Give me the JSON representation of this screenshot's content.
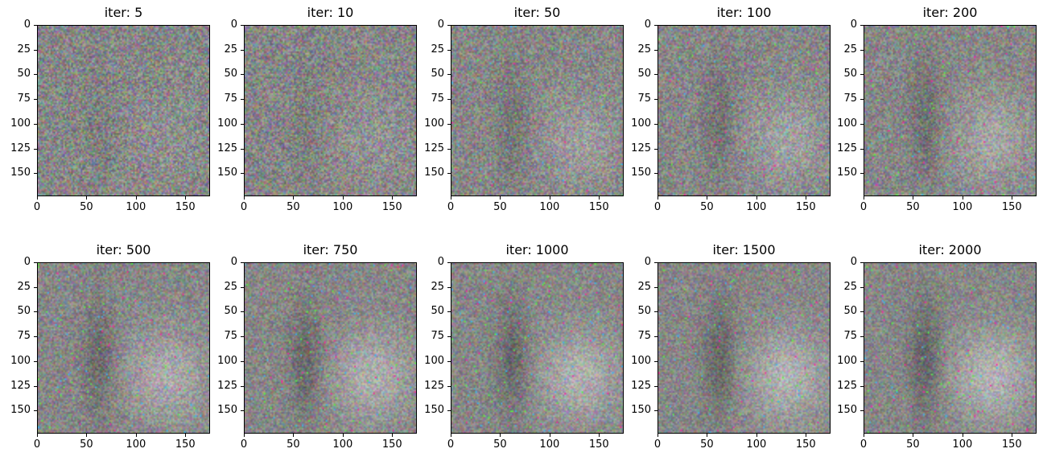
{
  "panels": [
    {
      "title": "iter: 5",
      "iter": 5
    },
    {
      "title": "iter: 10",
      "iter": 10
    },
    {
      "title": "iter: 50",
      "iter": 50
    },
    {
      "title": "iter: 100",
      "iter": 100
    },
    {
      "title": "iter: 200",
      "iter": 200
    },
    {
      "title": "iter: 500",
      "iter": 500
    },
    {
      "title": "iter: 750",
      "iter": 750
    },
    {
      "title": "iter: 1000",
      "iter": 1000
    },
    {
      "title": "iter: 1500",
      "iter": 1500
    },
    {
      "title": "iter: 2000",
      "iter": 2000
    }
  ],
  "axes": {
    "yticks": [
      "0",
      "25",
      "50",
      "75",
      "100",
      "125",
      "150"
    ],
    "xticks": [
      "0",
      "50",
      "100",
      "150"
    ],
    "yvalues": [
      0,
      25,
      50,
      75,
      100,
      125,
      150
    ],
    "xvalues": [
      0,
      50,
      100,
      150
    ],
    "xlim": [
      0,
      175
    ],
    "ylim": [
      0,
      175
    ]
  },
  "colors": {
    "background": "#ffffff",
    "axis": "#000000",
    "noise_base": "#8a8a8a"
  }
}
